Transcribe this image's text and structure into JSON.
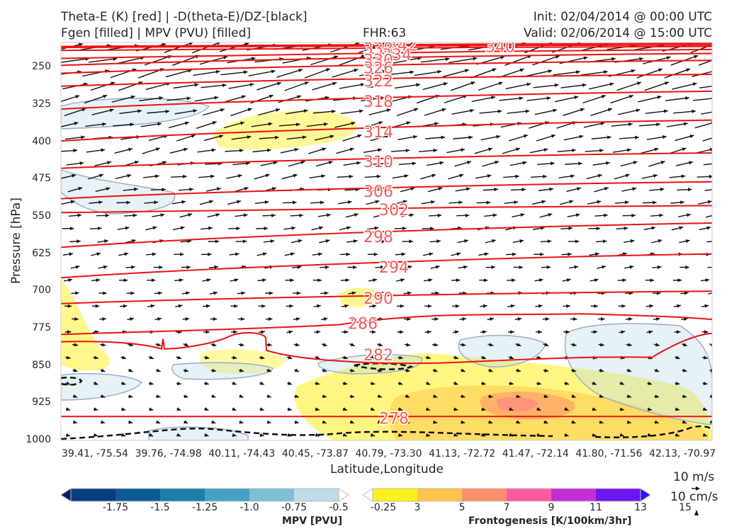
{
  "header": {
    "line1_left": "Theta-E (K) [red] | -D(theta-E)/DZ-[black]",
    "line2_left": "Fgen [filled] | MPV (PVU) [filled]",
    "center": "FHR:63",
    "line1_right": "Init: 02/04/2014 @ 00:00 UTC",
    "line2_right": "Valid: 02/06/2014 @ 15:00 UTC"
  },
  "chart_data": {
    "type": "cross-section",
    "xlabel": "Latitude,Longitude",
    "ylabel": "Pressure [hPa]",
    "x_ticks": [
      "39.41, -75.54",
      "39.76, -74.98",
      "40.11, -74.43",
      "40.45, -73.87",
      "40.79, -73.30",
      "41.13, -72.72",
      "41.47, -72.14",
      "41.80, -71.56",
      "42.13, -70.97"
    ],
    "y_ticks": [
      250,
      325,
      400,
      475,
      550,
      625,
      700,
      775,
      850,
      925,
      1000
    ],
    "ylim": [
      1000,
      200
    ],
    "theta_e_contours": [
      {
        "label": "342",
        "p_left": 208,
        "p_right": 202
      },
      {
        "label": "340",
        "p_left": 210,
        "p_right": 205
      },
      {
        "label": "338",
        "p_left": 216,
        "p_right": 208
      },
      {
        "label": "334",
        "p_left": 232,
        "p_right": 214
      },
      {
        "label": "330",
        "p_left": 246,
        "p_right": 222
      },
      {
        "label": "326",
        "p_left": 262,
        "p_right": 236
      },
      {
        "label": "322",
        "p_left": 288,
        "p_right": 264
      },
      {
        "label": "318",
        "p_left": 334,
        "p_right": 298
      },
      {
        "label": "314",
        "p_left": 398,
        "p_right": 356
      },
      {
        "label": "310",
        "p_left": 453,
        "p_right": 422
      },
      {
        "label": "306",
        "p_left": 514,
        "p_right": 480
      },
      {
        "label": "302",
        "p_left": 542,
        "p_right": 528
      },
      {
        "label": "298",
        "p_left": 612,
        "p_right": 563
      },
      {
        "label": "294",
        "p_left": 673,
        "p_right": 625
      },
      {
        "label": "290",
        "p_left": 725,
        "p_right": 700
      },
      {
        "label": "286",
        "p_left": 770,
        "p_right": 757
      },
      {
        "label": "282",
        "p_left": 836,
        "p_right": 835
      },
      {
        "label": "278",
        "p_left": 952,
        "p_right": 952
      }
    ],
    "mpv_colorbar": {
      "title": "MPV [PVU]",
      "ticks": [
        "-1.75",
        "-1.5",
        "-1.25",
        "-1.0",
        "-0.75",
        "-0.5",
        "-0.25"
      ],
      "colors": [
        "#0a1a6b",
        "#0a3c82",
        "#0b5a96",
        "#1b7ea8",
        "#45a1c2",
        "#7dbfd4",
        "#bcdde7",
        "#ffffff"
      ]
    },
    "fgen_colorbar": {
      "title": "Frontogenesis [K/100km/3hr]",
      "ticks": [
        "3",
        "5",
        "7",
        "9",
        "11",
        "13",
        "15"
      ],
      "colors": [
        "#ffffff",
        "#ffef1a",
        "#ffc34a",
        "#ff8e6a",
        "#ff5aa0",
        "#c42ed6",
        "#6e16f0",
        "#2a10f8"
      ]
    },
    "wind_reference": [
      "10 m/s",
      "10 cm/s"
    ]
  }
}
